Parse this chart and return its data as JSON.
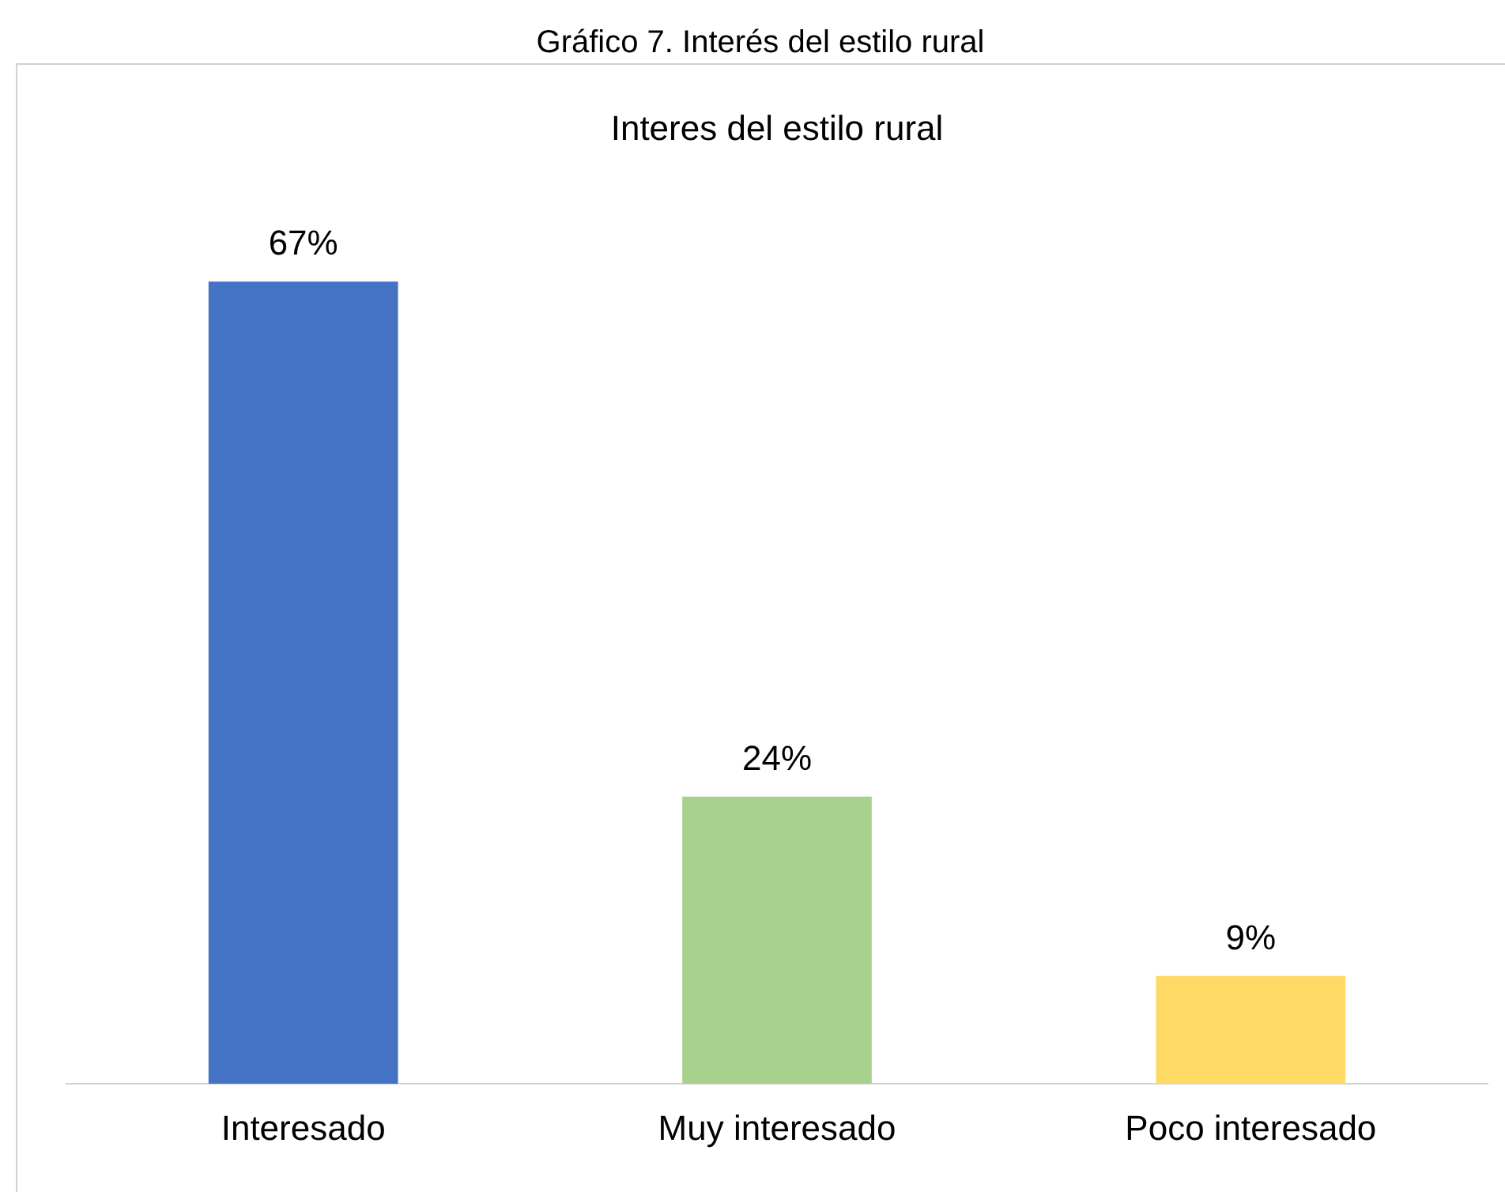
{
  "chart_data": {
    "type": "bar",
    "title": "Gráfico 7. Interés del estilo rural",
    "subtitle": "Interes del estilo rural",
    "categories": [
      "Interesado",
      "Muy interesado",
      "Poco interesado"
    ],
    "values": [
      67,
      24,
      9
    ],
    "colors": [
      "#4472c4",
      "#a9d18e",
      "#ffd966"
    ],
    "value_labels": [
      "67%",
      "24%",
      "9%"
    ]
  }
}
